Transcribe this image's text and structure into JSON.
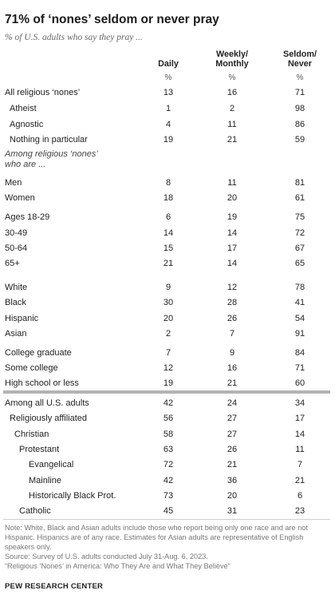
{
  "title": "71% of ‘nones’ seldom or never pray",
  "subtitle": "% of U.S. adults who say they pray ...",
  "columns": [
    "Daily",
    "Weekly/\nMonthly",
    "Seldom/\nNever"
  ],
  "units": [
    "%",
    "%",
    "%"
  ],
  "sections": {
    "among_nones": "Among religious ‘nones’\nwho are ..."
  },
  "chart_data": {
    "type": "table",
    "title": "71% of ‘nones’ seldom or never pray",
    "columns": [
      "Daily",
      "Weekly/Monthly",
      "Seldom/Never"
    ],
    "rows": [
      {
        "label": "All religious ‘nones’",
        "values": [
          13,
          16,
          71
        ]
      },
      {
        "label": "Atheist",
        "values": [
          1,
          2,
          98
        ]
      },
      {
        "label": "Agnostic",
        "values": [
          4,
          11,
          86
        ]
      },
      {
        "label": "Nothing in particular",
        "values": [
          19,
          21,
          59
        ]
      },
      {
        "label": "Men",
        "values": [
          8,
          11,
          81
        ]
      },
      {
        "label": "Women",
        "values": [
          18,
          20,
          61
        ]
      },
      {
        "label": "Ages 18-29",
        "values": [
          6,
          19,
          75
        ]
      },
      {
        "label": "30-49",
        "values": [
          14,
          14,
          72
        ]
      },
      {
        "label": "50-64",
        "values": [
          15,
          17,
          67
        ]
      },
      {
        "label": "65+",
        "values": [
          21,
          14,
          65
        ]
      },
      {
        "label": "White",
        "values": [
          9,
          12,
          78
        ]
      },
      {
        "label": "Black",
        "values": [
          30,
          28,
          41
        ]
      },
      {
        "label": "Hispanic",
        "values": [
          20,
          26,
          54
        ]
      },
      {
        "label": "Asian",
        "values": [
          2,
          7,
          91
        ]
      },
      {
        "label": "College graduate",
        "values": [
          7,
          9,
          84
        ]
      },
      {
        "label": "Some college",
        "values": [
          12,
          16,
          71
        ]
      },
      {
        "label": "High school or less",
        "values": [
          19,
          21,
          60
        ]
      },
      {
        "label": "Among all U.S. adults",
        "values": [
          42,
          24,
          34
        ]
      },
      {
        "label": "Religiously affiliated",
        "values": [
          56,
          27,
          17
        ]
      },
      {
        "label": "Christian",
        "values": [
          58,
          27,
          14
        ]
      },
      {
        "label": "Protestant",
        "values": [
          63,
          26,
          11
        ]
      },
      {
        "label": "Evangelical",
        "values": [
          72,
          21,
          7
        ]
      },
      {
        "label": "Mainline",
        "values": [
          42,
          36,
          21
        ]
      },
      {
        "label": "Historically Black Prot.",
        "values": [
          73,
          20,
          6
        ]
      },
      {
        "label": "Catholic",
        "values": [
          45,
          31,
          23
        ]
      }
    ]
  },
  "notes": [
    "Note: White, Black and Asian adults include those who report being only one race and are not Hispanic. Hispanics are of any race. Estimates for Asian adults are representative of English speakers only.",
    "Source: Survey of U.S. adults conducted July 31-Aug. 6, 2023.",
    "“Religious ‘Nones’ in America: Who They Are and What They Believe”"
  ],
  "brand": "PEW RESEARCH CENTER"
}
